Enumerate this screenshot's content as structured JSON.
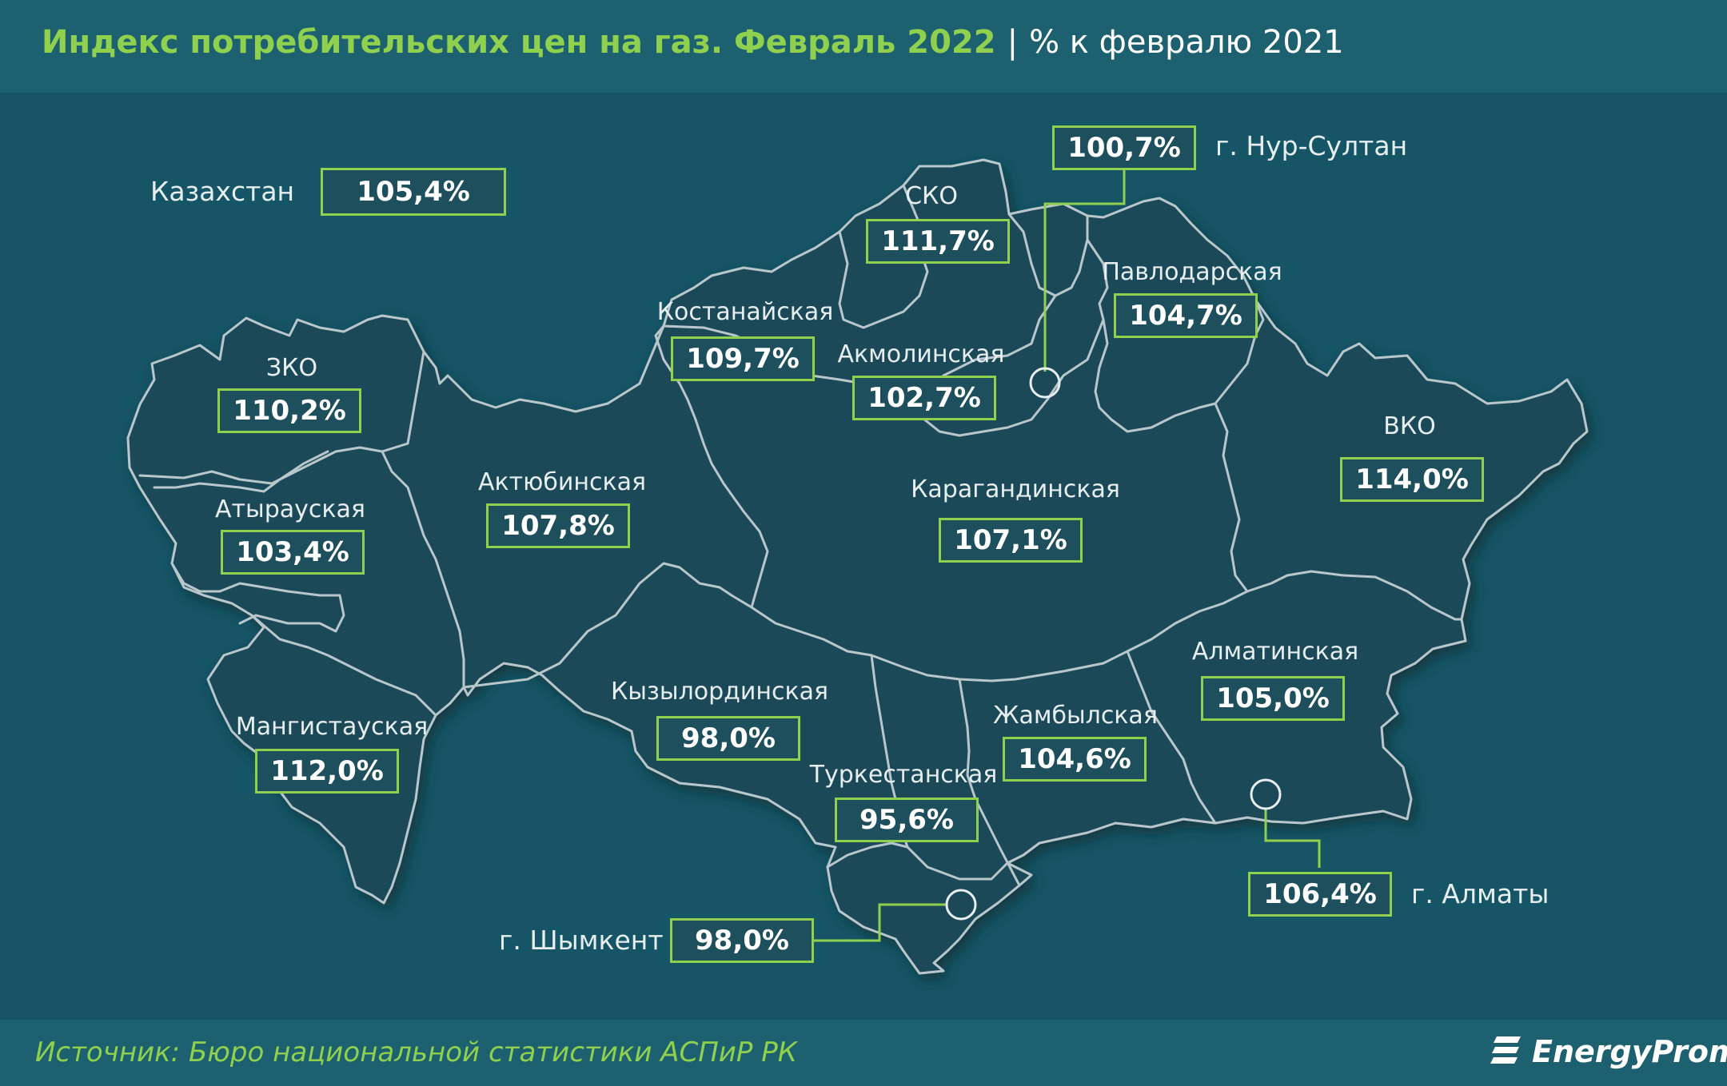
{
  "header": {
    "title": "Индекс потребительских цен на газ. Февраль 2022",
    "separator": "|",
    "subtitle": "% к февралю 2021"
  },
  "national": {
    "name": "Казахстан",
    "value": "105,4%"
  },
  "regions": {
    "zko": {
      "name": "ЗКО",
      "value": "110,2%"
    },
    "atyrau": {
      "name": "Атырауская",
      "value": "103,4%"
    },
    "mangystau": {
      "name": "Мангистауская",
      "value": "112,0%"
    },
    "aktobe": {
      "name": "Актюбинская",
      "value": "107,8%"
    },
    "kostanay": {
      "name": "Костанайская",
      "value": "109,7%"
    },
    "sko": {
      "name": "СКО",
      "value": "111,7%"
    },
    "akmola": {
      "name": "Акмолинская",
      "value": "102,7%"
    },
    "pavlodar": {
      "name": "Павлодарская",
      "value": "104,7%"
    },
    "vko": {
      "name": "ВКО",
      "value": "114,0%"
    },
    "karaganda": {
      "name": "Карагандинская",
      "value": "107,1%"
    },
    "kyzylorda": {
      "name": "Кызылординская",
      "value": "98,0%"
    },
    "turkestan": {
      "name": "Туркестанская",
      "value": "95,6%"
    },
    "zhambyl": {
      "name": "Жамбылская",
      "value": "104,6%"
    },
    "almaty_region": {
      "name": "Алматинская",
      "value": "105,0%"
    }
  },
  "cities": {
    "nur_sultan": {
      "name": "г. Нур-Султан",
      "value": "100,7%"
    },
    "almaty": {
      "name": "г. Алматы",
      "value": "106,4%"
    },
    "shymkent": {
      "name": "г. Шымкент",
      "value": "98,0%"
    }
  },
  "footer": {
    "source": "Источник: Бюро национальной статистики АСПиР РК",
    "brand": "EnergyProm"
  },
  "colors": {
    "background": "#165566",
    "band": "#1d6170",
    "region_fill": "#1b4a58",
    "border": "#b8c7cc",
    "accent_green": "#8fd14f"
  }
}
